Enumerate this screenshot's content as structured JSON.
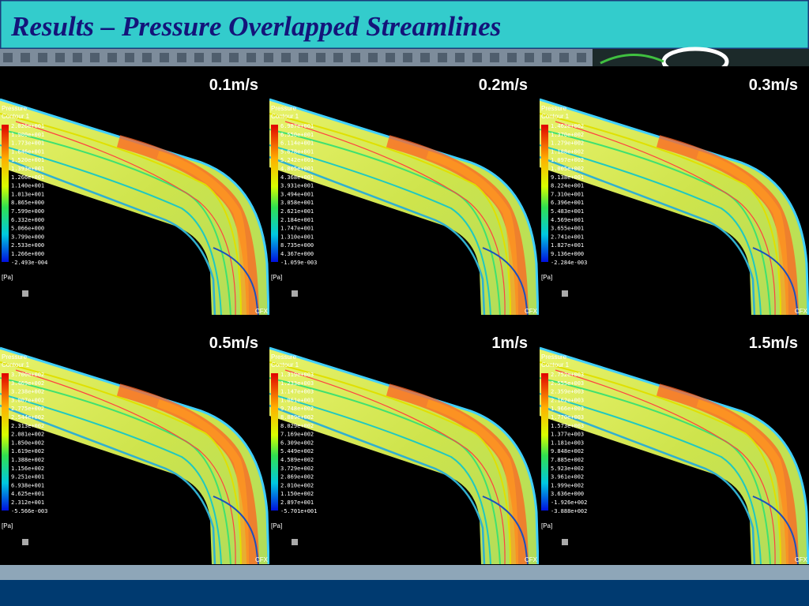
{
  "title": "Results – Pressure Overlapped Streamlines",
  "panels": [
    {
      "label": "0.1m/s",
      "legend_title": "Pressure",
      "legend_subtitle": "Contour 1",
      "unit": "[Pa]",
      "logo": "CFX",
      "legend_values": [
        "2.026e+001",
        "1.900e+001",
        "1.773e+001",
        "1.646e+001",
        "1.520e+001",
        "1.393e+001",
        "1.266e+001",
        "1.140e+001",
        "1.013e+001",
        "8.865e+000",
        "7.599e+000",
        "6.332e+000",
        "5.066e+000",
        "3.799e+000",
        "2.533e+000",
        "1.266e+000",
        "-2.493e-004"
      ]
    },
    {
      "label": "0.2m/s",
      "legend_title": "Pressure",
      "legend_subtitle": "Contour 1",
      "unit": "[Pa]",
      "logo": "CFX",
      "legend_values": [
        "6.987e+001",
        "6.550e+001",
        "6.114e+001",
        "5.678e+001",
        "5.242e+001",
        "4.805e+001",
        "4.368e+001",
        "3.931e+001",
        "3.494e+001",
        "3.058e+001",
        "2.621e+001",
        "2.184e+001",
        "1.747e+001",
        "1.310e+001",
        "8.735e+000",
        "4.367e+000",
        "-1.059e-003"
      ]
    },
    {
      "label": "0.3m/s",
      "legend_title": "Pressure",
      "legend_subtitle": "Contour 1",
      "unit": "[Pa]",
      "logo": "CFX",
      "legend_values": [
        "1.462e+002",
        "1.370e+002",
        "1.279e+002",
        "1.188e+002",
        "1.097e+002",
        "1.005e+002",
        "9.138e+001",
        "8.224e+001",
        "7.310e+001",
        "6.396e+001",
        "5.483e+001",
        "4.569e+001",
        "3.655e+001",
        "2.741e+001",
        "1.827e+001",
        "9.136e+000",
        "-2.284e-003"
      ]
    },
    {
      "label": "0.5m/s",
      "legend_title": "Pressure",
      "legend_subtitle": "Contour 1",
      "unit": "[Pa]",
      "logo": "CFX",
      "legend_values": [
        "3.700e+002",
        "3.469e+002",
        "3.238e+002",
        "3.007e+002",
        "2.775e+002",
        "2.544e+002",
        "2.313e+002",
        "2.081e+002",
        "1.850e+002",
        "1.619e+002",
        "1.388e+002",
        "1.156e+002",
        "9.251e+001",
        "6.938e+001",
        "4.625e+001",
        "2.312e+001",
        "-5.566e-003"
      ]
    },
    {
      "label": "1m/s",
      "legend_title": "Pressure",
      "legend_subtitle": "Contour 1",
      "unit": "[Pa]",
      "logo": "CFX",
      "legend_values": [
        "1.319e+003",
        "1.233e+003",
        "1.147e+003",
        "1.061e+003",
        "9.748e+002",
        "8.889e+002",
        "8.029e+002",
        "7.169e+002",
        "6.309e+002",
        "5.449e+002",
        "4.589e+002",
        "3.729e+002",
        "2.869e+002",
        "2.010e+002",
        "1.150e+002",
        "2.897e+001",
        "-5.701e+001"
      ]
    },
    {
      "label": "1.5m/s",
      "legend_title": "Pressure",
      "legend_subtitle": "Contour 1",
      "unit": "[Pa]",
      "logo": "CFX",
      "legend_values": [
        "2.752e+003",
        "2.555e+003",
        "2.359e+003",
        "2.162e+003",
        "1.966e+003",
        "1.770e+003",
        "1.573e+003",
        "1.377e+003",
        "1.181e+003",
        "9.848e+002",
        "7.885e+002",
        "5.923e+002",
        "3.961e+002",
        "1.999e+002",
        "3.636e+000",
        "-1.926e+002",
        "-3.888e+002"
      ]
    }
  ]
}
